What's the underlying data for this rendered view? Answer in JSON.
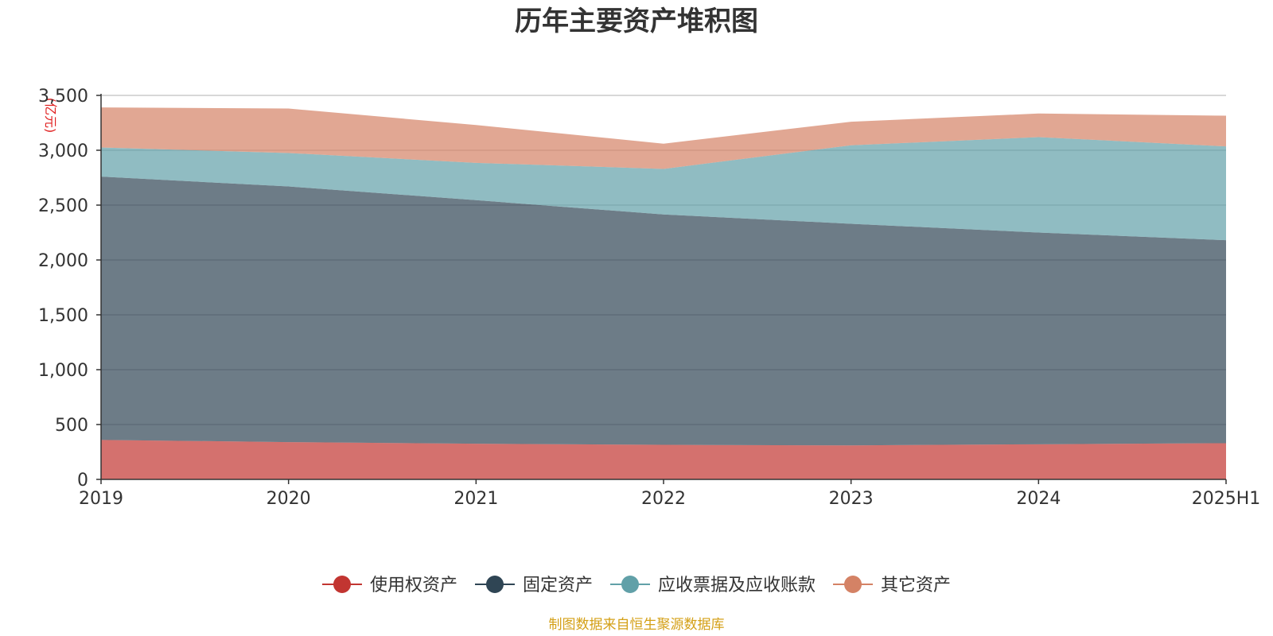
{
  "chart_data": {
    "type": "area",
    "stacked": true,
    "title": "历年主要资产堆积图",
    "unit": "(亿元)",
    "categories": [
      "2019",
      "2020",
      "2021",
      "2022",
      "2023",
      "2024",
      "2025H1"
    ],
    "ylim": [
      0,
      3500
    ],
    "yticks": [
      "0",
      "500",
      "1,000",
      "1,500",
      "2,000",
      "2,500",
      "3,000",
      "3,500"
    ],
    "grid": true,
    "legend_position": "bottom",
    "series": [
      {
        "name": "使用权资产",
        "color": "#c23531",
        "values": [
          360,
          340,
          325,
          315,
          310,
          320,
          330
        ]
      },
      {
        "name": "固定资产",
        "color": "#2f4554",
        "values": [
          2400,
          2330,
          2220,
          2100,
          2020,
          1930,
          1850
        ]
      },
      {
        "name": "应收票据及应收账款",
        "color": "#61a0a8",
        "values": [
          265,
          305,
          340,
          415,
          715,
          870,
          855
        ]
      },
      {
        "name": "其它资产",
        "color": "#d48265",
        "values": [
          365,
          405,
          345,
          230,
          215,
          215,
          280
        ]
      }
    ],
    "source": "制图数据来自恒生聚源数据库"
  }
}
